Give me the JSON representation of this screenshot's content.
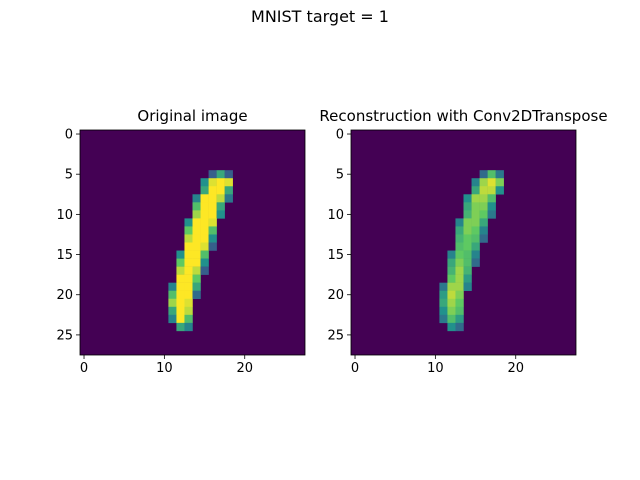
{
  "figure": {
    "suptitle": "MNIST target = 1",
    "background": "#ffffff",
    "colormap": "viridis"
  },
  "chart_data": [
    {
      "type": "heatmap",
      "title": "Original image",
      "xlabel": "",
      "ylabel": "",
      "x_ticks": [
        0,
        10,
        20
      ],
      "y_ticks": [
        0,
        5,
        10,
        15,
        20,
        25
      ],
      "xlim": [
        -0.5,
        27.5
      ],
      "ylim": [
        27.5,
        -0.5
      ],
      "grid": false,
      "value_range": [
        0,
        1
      ],
      "size": [
        28,
        28
      ],
      "nonzero_rows": [
        {
          "row": 5,
          "cells": [
            [
              16,
              0.3
            ],
            [
              17,
              0.6
            ],
            [
              18,
              0.3
            ]
          ]
        },
        {
          "row": 6,
          "cells": [
            [
              15,
              0.5
            ],
            [
              16,
              0.95
            ],
            [
              17,
              1.0
            ],
            [
              18,
              0.95
            ]
          ]
        },
        {
          "row": 7,
          "cells": [
            [
              15,
              0.6
            ],
            [
              16,
              1.0
            ],
            [
              17,
              1.0
            ],
            [
              18,
              0.6
            ]
          ]
        },
        {
          "row": 8,
          "cells": [
            [
              14,
              0.45
            ],
            [
              15,
              1.0
            ],
            [
              16,
              1.0
            ],
            [
              17,
              0.9
            ],
            [
              18,
              0.4
            ]
          ]
        },
        {
          "row": 9,
          "cells": [
            [
              14,
              0.7
            ],
            [
              15,
              1.0
            ],
            [
              16,
              1.0
            ],
            [
              17,
              0.6
            ]
          ]
        },
        {
          "row": 10,
          "cells": [
            [
              14,
              0.85
            ],
            [
              15,
              1.0
            ],
            [
              16,
              1.0
            ],
            [
              17,
              0.5
            ]
          ]
        },
        {
          "row": 11,
          "cells": [
            [
              13,
              0.5
            ],
            [
              14,
              1.0
            ],
            [
              15,
              1.0
            ],
            [
              16,
              0.95
            ]
          ]
        },
        {
          "row": 12,
          "cells": [
            [
              13,
              0.75
            ],
            [
              14,
              1.0
            ],
            [
              15,
              1.0
            ],
            [
              16,
              0.7
            ]
          ]
        },
        {
          "row": 13,
          "cells": [
            [
              13,
              0.9
            ],
            [
              14,
              1.0
            ],
            [
              15,
              1.0
            ],
            [
              16,
              0.5
            ]
          ]
        },
        {
          "row": 14,
          "cells": [
            [
              13,
              1.0
            ],
            [
              14,
              1.0
            ],
            [
              15,
              0.95
            ],
            [
              16,
              0.3
            ]
          ]
        },
        {
          "row": 15,
          "cells": [
            [
              12,
              0.5
            ],
            [
              13,
              1.0
            ],
            [
              14,
              1.0
            ],
            [
              15,
              0.7
            ]
          ]
        },
        {
          "row": 16,
          "cells": [
            [
              12,
              0.75
            ],
            [
              13,
              1.0
            ],
            [
              14,
              1.0
            ],
            [
              15,
              0.5
            ]
          ]
        },
        {
          "row": 17,
          "cells": [
            [
              12,
              0.9
            ],
            [
              13,
              1.0
            ],
            [
              14,
              0.9
            ],
            [
              15,
              0.3
            ]
          ]
        },
        {
          "row": 18,
          "cells": [
            [
              12,
              1.0
            ],
            [
              13,
              1.0
            ],
            [
              14,
              0.75
            ]
          ]
        },
        {
          "row": 19,
          "cells": [
            [
              11,
              0.45
            ],
            [
              12,
              1.0
            ],
            [
              13,
              1.0
            ],
            [
              14,
              0.6
            ]
          ]
        },
        {
          "row": 20,
          "cells": [
            [
              11,
              0.7
            ],
            [
              12,
              1.0
            ],
            [
              13,
              1.0
            ],
            [
              14,
              0.35
            ]
          ]
        },
        {
          "row": 21,
          "cells": [
            [
              11,
              0.85
            ],
            [
              12,
              1.0
            ],
            [
              13,
              0.95
            ]
          ]
        },
        {
          "row": 22,
          "cells": [
            [
              11,
              0.6
            ],
            [
              12,
              1.0
            ],
            [
              13,
              0.9
            ]
          ]
        },
        {
          "row": 23,
          "cells": [
            [
              11,
              0.45
            ],
            [
              12,
              1.0
            ],
            [
              13,
              0.7
            ]
          ]
        },
        {
          "row": 24,
          "cells": [
            [
              12,
              0.6
            ],
            [
              13,
              0.45
            ]
          ]
        }
      ]
    },
    {
      "type": "heatmap",
      "title": "Reconstruction with Conv2DTranspose",
      "xlabel": "",
      "ylabel": "",
      "x_ticks": [
        0,
        10,
        20
      ],
      "y_ticks": [
        0,
        5,
        10,
        15,
        20,
        25
      ],
      "xlim": [
        -0.5,
        27.5
      ],
      "ylim": [
        27.5,
        -0.5
      ],
      "grid": false,
      "value_range": [
        0,
        1
      ],
      "size": [
        28,
        28
      ],
      "nonzero_rows": [
        {
          "row": 5,
          "cells": [
            [
              16,
              0.35
            ],
            [
              17,
              0.7
            ],
            [
              18,
              0.4
            ]
          ]
        },
        {
          "row": 6,
          "cells": [
            [
              15,
              0.45
            ],
            [
              16,
              0.85
            ],
            [
              17,
              0.95
            ],
            [
              18,
              0.8
            ]
          ]
        },
        {
          "row": 7,
          "cells": [
            [
              15,
              0.6
            ],
            [
              16,
              0.9
            ],
            [
              17,
              0.9
            ],
            [
              18,
              0.5
            ]
          ]
        },
        {
          "row": 8,
          "cells": [
            [
              14,
              0.5
            ],
            [
              15,
              0.85
            ],
            [
              16,
              0.85
            ],
            [
              17,
              0.7
            ]
          ]
        },
        {
          "row": 9,
          "cells": [
            [
              14,
              0.6
            ],
            [
              15,
              0.8
            ],
            [
              16,
              0.8
            ],
            [
              17,
              0.5
            ]
          ]
        },
        {
          "row": 10,
          "cells": [
            [
              14,
              0.65
            ],
            [
              15,
              0.8
            ],
            [
              16,
              0.75
            ],
            [
              17,
              0.4
            ]
          ]
        },
        {
          "row": 11,
          "cells": [
            [
              13,
              0.45
            ],
            [
              14,
              0.8
            ],
            [
              15,
              0.8
            ],
            [
              16,
              0.6
            ]
          ]
        },
        {
          "row": 12,
          "cells": [
            [
              13,
              0.6
            ],
            [
              14,
              0.8
            ],
            [
              15,
              0.75
            ],
            [
              16,
              0.45
            ]
          ]
        },
        {
          "row": 13,
          "cells": [
            [
              13,
              0.65
            ],
            [
              14,
              0.75
            ],
            [
              15,
              0.7
            ],
            [
              16,
              0.35
            ]
          ]
        },
        {
          "row": 14,
          "cells": [
            [
              13,
              0.7
            ],
            [
              14,
              0.75
            ],
            [
              15,
              0.6
            ]
          ]
        },
        {
          "row": 15,
          "cells": [
            [
              12,
              0.45
            ],
            [
              13,
              0.75
            ],
            [
              14,
              0.7
            ],
            [
              15,
              0.45
            ]
          ]
        },
        {
          "row": 16,
          "cells": [
            [
              12,
              0.6
            ],
            [
              13,
              0.8
            ],
            [
              14,
              0.7
            ],
            [
              15,
              0.35
            ]
          ]
        },
        {
          "row": 17,
          "cells": [
            [
              12,
              0.65
            ],
            [
              13,
              0.85
            ],
            [
              14,
              0.65
            ]
          ]
        },
        {
          "row": 18,
          "cells": [
            [
              12,
              0.75
            ],
            [
              13,
              0.85
            ],
            [
              14,
              0.55
            ]
          ]
        },
        {
          "row": 19,
          "cells": [
            [
              11,
              0.4
            ],
            [
              12,
              0.85
            ],
            [
              13,
              0.85
            ],
            [
              14,
              0.45
            ]
          ]
        },
        {
          "row": 20,
          "cells": [
            [
              11,
              0.55
            ],
            [
              12,
              0.9
            ],
            [
              13,
              0.8
            ]
          ]
        },
        {
          "row": 21,
          "cells": [
            [
              11,
              0.6
            ],
            [
              12,
              0.85
            ],
            [
              13,
              0.75
            ]
          ]
        },
        {
          "row": 22,
          "cells": [
            [
              11,
              0.5
            ],
            [
              12,
              0.8
            ],
            [
              13,
              0.7
            ]
          ]
        },
        {
          "row": 23,
          "cells": [
            [
              11,
              0.4
            ],
            [
              12,
              0.7
            ],
            [
              13,
              0.55
            ]
          ]
        },
        {
          "row": 24,
          "cells": [
            [
              12,
              0.5
            ],
            [
              13,
              0.35
            ]
          ]
        }
      ]
    }
  ]
}
